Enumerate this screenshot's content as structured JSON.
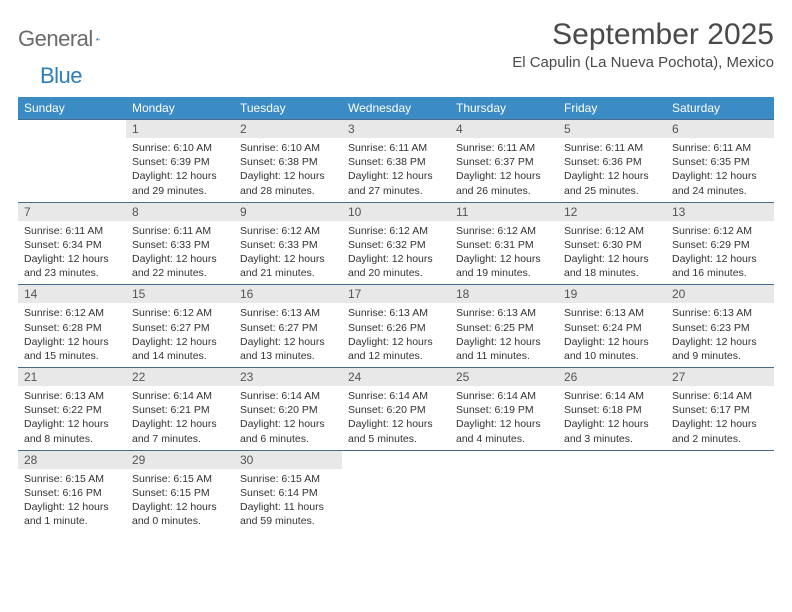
{
  "brand": {
    "part1": "General",
    "part2": "Blue"
  },
  "title": "September 2025",
  "location": "El Capulin (La Nueva Pochota), Mexico",
  "colors": {
    "header_bg": "#3b8bc4",
    "header_fg": "#ffffff",
    "daynum_bg": "#e8e8e8",
    "rule": "#4a6a8a",
    "logo_gray": "#6b6b6b",
    "logo_blue": "#2a7fba"
  },
  "weekdays": [
    "Sunday",
    "Monday",
    "Tuesday",
    "Wednesday",
    "Thursday",
    "Friday",
    "Saturday"
  ],
  "weeks": [
    [
      null,
      {
        "d": "1",
        "sr": "6:10 AM",
        "ss": "6:39 PM",
        "dl": "12 hours and 29 minutes."
      },
      {
        "d": "2",
        "sr": "6:10 AM",
        "ss": "6:38 PM",
        "dl": "12 hours and 28 minutes."
      },
      {
        "d": "3",
        "sr": "6:11 AM",
        "ss": "6:38 PM",
        "dl": "12 hours and 27 minutes."
      },
      {
        "d": "4",
        "sr": "6:11 AM",
        "ss": "6:37 PM",
        "dl": "12 hours and 26 minutes."
      },
      {
        "d": "5",
        "sr": "6:11 AM",
        "ss": "6:36 PM",
        "dl": "12 hours and 25 minutes."
      },
      {
        "d": "6",
        "sr": "6:11 AM",
        "ss": "6:35 PM",
        "dl": "12 hours and 24 minutes."
      }
    ],
    [
      {
        "d": "7",
        "sr": "6:11 AM",
        "ss": "6:34 PM",
        "dl": "12 hours and 23 minutes."
      },
      {
        "d": "8",
        "sr": "6:11 AM",
        "ss": "6:33 PM",
        "dl": "12 hours and 22 minutes."
      },
      {
        "d": "9",
        "sr": "6:12 AM",
        "ss": "6:33 PM",
        "dl": "12 hours and 21 minutes."
      },
      {
        "d": "10",
        "sr": "6:12 AM",
        "ss": "6:32 PM",
        "dl": "12 hours and 20 minutes."
      },
      {
        "d": "11",
        "sr": "6:12 AM",
        "ss": "6:31 PM",
        "dl": "12 hours and 19 minutes."
      },
      {
        "d": "12",
        "sr": "6:12 AM",
        "ss": "6:30 PM",
        "dl": "12 hours and 18 minutes."
      },
      {
        "d": "13",
        "sr": "6:12 AM",
        "ss": "6:29 PM",
        "dl": "12 hours and 16 minutes."
      }
    ],
    [
      {
        "d": "14",
        "sr": "6:12 AM",
        "ss": "6:28 PM",
        "dl": "12 hours and 15 minutes."
      },
      {
        "d": "15",
        "sr": "6:12 AM",
        "ss": "6:27 PM",
        "dl": "12 hours and 14 minutes."
      },
      {
        "d": "16",
        "sr": "6:13 AM",
        "ss": "6:27 PM",
        "dl": "12 hours and 13 minutes."
      },
      {
        "d": "17",
        "sr": "6:13 AM",
        "ss": "6:26 PM",
        "dl": "12 hours and 12 minutes."
      },
      {
        "d": "18",
        "sr": "6:13 AM",
        "ss": "6:25 PM",
        "dl": "12 hours and 11 minutes."
      },
      {
        "d": "19",
        "sr": "6:13 AM",
        "ss": "6:24 PM",
        "dl": "12 hours and 10 minutes."
      },
      {
        "d": "20",
        "sr": "6:13 AM",
        "ss": "6:23 PM",
        "dl": "12 hours and 9 minutes."
      }
    ],
    [
      {
        "d": "21",
        "sr": "6:13 AM",
        "ss": "6:22 PM",
        "dl": "12 hours and 8 minutes."
      },
      {
        "d": "22",
        "sr": "6:14 AM",
        "ss": "6:21 PM",
        "dl": "12 hours and 7 minutes."
      },
      {
        "d": "23",
        "sr": "6:14 AM",
        "ss": "6:20 PM",
        "dl": "12 hours and 6 minutes."
      },
      {
        "d": "24",
        "sr": "6:14 AM",
        "ss": "6:20 PM",
        "dl": "12 hours and 5 minutes."
      },
      {
        "d": "25",
        "sr": "6:14 AM",
        "ss": "6:19 PM",
        "dl": "12 hours and 4 minutes."
      },
      {
        "d": "26",
        "sr": "6:14 AM",
        "ss": "6:18 PM",
        "dl": "12 hours and 3 minutes."
      },
      {
        "d": "27",
        "sr": "6:14 AM",
        "ss": "6:17 PM",
        "dl": "12 hours and 2 minutes."
      }
    ],
    [
      {
        "d": "28",
        "sr": "6:15 AM",
        "ss": "6:16 PM",
        "dl": "12 hours and 1 minute."
      },
      {
        "d": "29",
        "sr": "6:15 AM",
        "ss": "6:15 PM",
        "dl": "12 hours and 0 minutes."
      },
      {
        "d": "30",
        "sr": "6:15 AM",
        "ss": "6:14 PM",
        "dl": "11 hours and 59 minutes."
      },
      null,
      null,
      null,
      null
    ]
  ],
  "labels": {
    "sunrise": "Sunrise:",
    "sunset": "Sunset:",
    "daylight": "Daylight:"
  }
}
